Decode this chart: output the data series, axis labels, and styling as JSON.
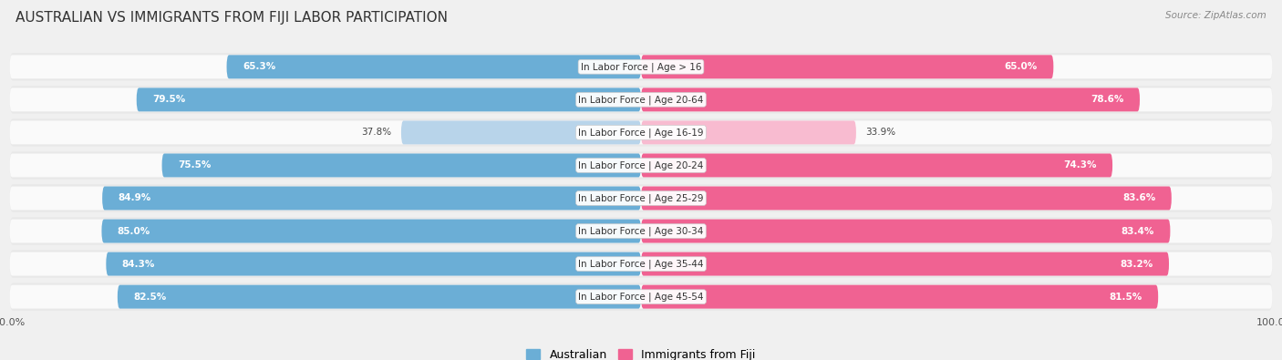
{
  "title": "AUSTRALIAN VS IMMIGRANTS FROM FIJI LABOR PARTICIPATION",
  "source": "Source: ZipAtlas.com",
  "categories": [
    "In Labor Force | Age > 16",
    "In Labor Force | Age 20-64",
    "In Labor Force | Age 16-19",
    "In Labor Force | Age 20-24",
    "In Labor Force | Age 25-29",
    "In Labor Force | Age 30-34",
    "In Labor Force | Age 35-44",
    "In Labor Force | Age 45-54"
  ],
  "australian_values": [
    65.3,
    79.5,
    37.8,
    75.5,
    84.9,
    85.0,
    84.3,
    82.5
  ],
  "fiji_values": [
    65.0,
    78.6,
    33.9,
    74.3,
    83.6,
    83.4,
    83.2,
    81.5
  ],
  "australian_color": "#6baed6",
  "fiji_color": "#f06292",
  "australian_color_light": "#b8d4ea",
  "fiji_color_light": "#f8bbd0",
  "max_value": 100.0,
  "bg_color": "#f0f0f0",
  "row_bg_color": "#e8e8e8",
  "row_inner_color": "#fafafa",
  "title_fontsize": 11,
  "label_fontsize": 7.5,
  "value_fontsize": 7.5,
  "legend_fontsize": 9
}
